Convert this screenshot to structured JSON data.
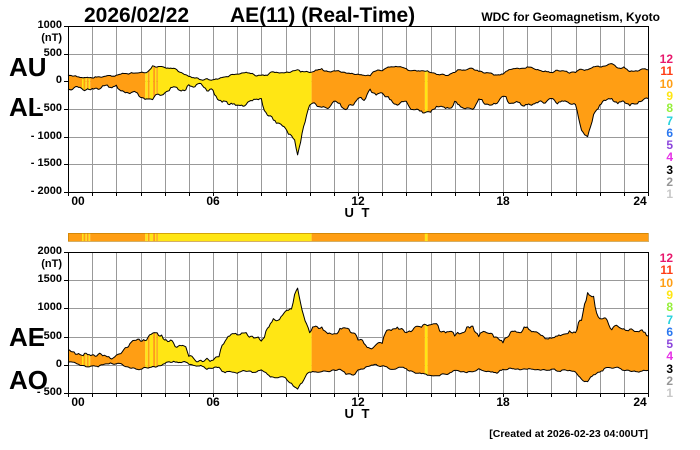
{
  "header": {
    "date": "2026/02/22",
    "title": "AE(11) (Real-Time)",
    "org": "WDC for Geomagnetism, Kyoto"
  },
  "footer": {
    "created": "[Created at 2026-02-23 04:00UT]"
  },
  "colors": {
    "fill_orange": "#ff9e14",
    "fill_yellow": "#ffee00",
    "grid": "#999999",
    "frame": "#000000",
    "background": "#ffffff",
    "curve": "#1a1a00"
  },
  "station_scale": {
    "values": [
      12,
      11,
      10,
      9,
      8,
      7,
      6,
      5,
      4,
      3,
      2,
      1
    ],
    "colors": {
      "12": "#e8186c",
      "11": "#ff3c14",
      "10": "#ff9e14",
      "9": "#ffe614",
      "8": "#96f03c",
      "7": "#28d2dc",
      "6": "#2b78f0",
      "5": "#8c46dc",
      "4": "#e632e6",
      "3": "#000000",
      "2": "#969696",
      "1": "#c8c8c8"
    }
  },
  "station_segments": [
    {
      "from": 0,
      "to": 0.58,
      "n": 10
    },
    {
      "from": 0.58,
      "to": 0.64,
      "n": 9
    },
    {
      "from": 0.64,
      "to": 0.72,
      "n": 10
    },
    {
      "from": 0.72,
      "to": 0.78,
      "n": 9
    },
    {
      "from": 0.78,
      "to": 0.86,
      "n": 10
    },
    {
      "from": 0.86,
      "to": 0.92,
      "n": 9
    },
    {
      "from": 0.92,
      "to": 3.2,
      "n": 10
    },
    {
      "from": 3.2,
      "to": 3.3,
      "n": 9
    },
    {
      "from": 3.3,
      "to": 3.38,
      "n": 10
    },
    {
      "from": 3.38,
      "to": 3.52,
      "n": 9
    },
    {
      "from": 3.52,
      "to": 3.6,
      "n": 10
    },
    {
      "from": 3.6,
      "to": 3.66,
      "n": 9
    },
    {
      "from": 3.66,
      "to": 3.72,
      "n": 10
    },
    {
      "from": 3.72,
      "to": 10.08,
      "n": 9
    },
    {
      "from": 10.08,
      "to": 14.77,
      "n": 10
    },
    {
      "from": 14.77,
      "to": 14.88,
      "n": 9
    },
    {
      "from": 14.88,
      "to": 24,
      "n": 10
    }
  ],
  "chart_data": [
    {
      "type": "area",
      "name": "AU-AL panel",
      "left_labels": [
        "AU",
        "AL"
      ],
      "unit": "(nT)",
      "xlabel": "U T",
      "ylim": [
        -2000,
        1000
      ],
      "xlim_hours": [
        0,
        24
      ],
      "grid": "on",
      "yticks": [
        {
          "label": "1000",
          "value": 1000
        },
        {
          "label": "500",
          "value": 500
        },
        {
          "label": "0",
          "value": 0
        },
        {
          "label": "- 500",
          "value": -500
        },
        {
          "label": "- 1000",
          "value": -1000
        },
        {
          "label": "- 1500",
          "value": -1500
        },
        {
          "label": "- 2000",
          "value": -2000
        }
      ],
      "xticks": [
        {
          "label": "00",
          "hour": 0
        },
        {
          "label": "06",
          "hour": 6
        },
        {
          "label": "12",
          "hour": 12
        },
        {
          "label": "18",
          "hour": 18
        },
        {
          "label": "24",
          "hour": 24
        }
      ],
      "x_step_hours": 0.5,
      "series": [
        {
          "name": "AU",
          "values": [
            120,
            70,
            60,
            90,
            110,
            130,
            160,
            280,
            250,
            210,
            90,
            30,
            30,
            80,
            130,
            150,
            110,
            170,
            160,
            210,
            160,
            230,
            190,
            150,
            130,
            100,
            190,
            260,
            230,
            190,
            160,
            130,
            160,
            210,
            180,
            150,
            130,
            230,
            260,
            200,
            160,
            190,
            160,
            210,
            260,
            320,
            260,
            190,
            210
          ]
        },
        {
          "name": "AL",
          "values": [
            -160,
            -110,
            -130,
            -80,
            -70,
            -210,
            -290,
            -330,
            -210,
            -110,
            -60,
            -40,
            -160,
            -360,
            -430,
            -360,
            -310,
            -700,
            -850,
            -1330,
            -430,
            -470,
            -360,
            -510,
            -310,
            -140,
            -210,
            -410,
            -360,
            -510,
            -560,
            -460,
            -360,
            -480,
            -320,
            -430,
            -270,
            -380,
            -420,
            -360,
            -310,
            -360,
            -420,
            -1000,
            -430,
            -310,
            -360,
            -410,
            -310
          ]
        }
      ]
    },
    {
      "type": "area",
      "name": "AE-AO panel",
      "left_labels": [
        "AE",
        "AO"
      ],
      "unit": "(nT)",
      "xlabel": "U T",
      "ylim": [
        -500,
        2000
      ],
      "xlim_hours": [
        0,
        24
      ],
      "grid": "on",
      "yticks": [
        {
          "label": "2000",
          "value": 2000
        },
        {
          "label": "1500",
          "value": 1500
        },
        {
          "label": "1000",
          "value": 1000
        },
        {
          "label": "500",
          "value": 500
        },
        {
          "label": "0",
          "value": 0
        },
        {
          "label": "- 500",
          "value": -500
        }
      ],
      "xticks": [
        {
          "label": "00",
          "hour": 0
        },
        {
          "label": "06",
          "hour": 6
        },
        {
          "label": "12",
          "hour": 12
        },
        {
          "label": "18",
          "hour": 18
        },
        {
          "label": "24",
          "hour": 24
        }
      ],
      "x_step_hours": 0.5,
      "series": [
        {
          "name": "AE",
          "values": [
            260,
            180,
            175,
            170,
            170,
            320,
            420,
            560,
            440,
            310,
            150,
            80,
            80,
            420,
            530,
            490,
            420,
            820,
            950,
            1360,
            570,
            670,
            550,
            650,
            440,
            290,
            380,
            640,
            570,
            680,
            710,
            590,
            510,
            670,
            500,
            560,
            390,
            600,
            670,
            550,
            470,
            540,
            570,
            1280,
            820,
            620,
            640,
            590,
            510
          ]
        },
        {
          "name": "AO",
          "values": [
            40,
            -10,
            -20,
            10,
            20,
            -40,
            -80,
            -30,
            20,
            50,
            10,
            -10,
            -60,
            -140,
            -150,
            -110,
            -90,
            -220,
            -230,
            -430,
            -130,
            -120,
            -90,
            -170,
            -90,
            -20,
            -20,
            -80,
            -70,
            -150,
            -190,
            -160,
            -100,
            -140,
            -70,
            -130,
            -80,
            -80,
            -80,
            -90,
            -80,
            -90,
            -130,
            -300,
            -130,
            -60,
            -100,
            -120,
            -100
          ]
        }
      ]
    }
  ]
}
